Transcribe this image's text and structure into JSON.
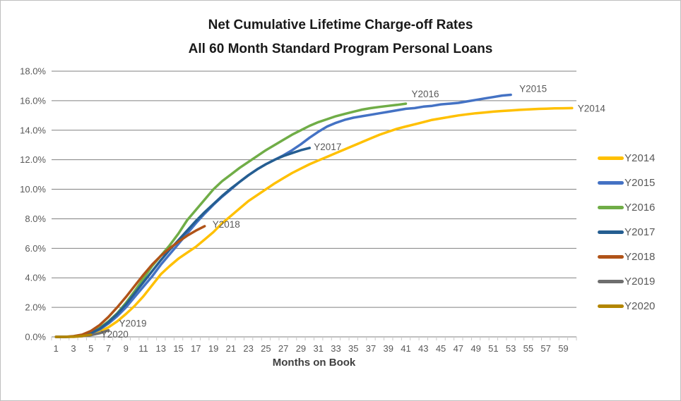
{
  "title": {
    "line1": "Net Cumulative Lifetime Charge-off Rates",
    "line2": "All 60 Month Standard Program Personal Loans"
  },
  "style": {
    "gridline_color": "#808080",
    "tick_color": "#c9c9c9",
    "axis_text_color": "#595959",
    "title_color": "#1a1a1a",
    "background": "#ffffff",
    "border_color": "#bfbfbf"
  },
  "chart_data": {
    "type": "line",
    "title": "Net Cumulative Lifetime Charge-off Rates — All 60 Month Standard Program Personal Loans",
    "xlabel": "Months on Book",
    "ylabel": "",
    "grid": true,
    "legend_position": "right",
    "x_axis": {
      "min": 1,
      "max": 60,
      "tick_labels": [
        "1",
        "3",
        "5",
        "7",
        "9",
        "11",
        "13",
        "15",
        "17",
        "19",
        "21",
        "23",
        "25",
        "27",
        "29",
        "31",
        "33",
        "35",
        "37",
        "39",
        "41",
        "43",
        "45",
        "47",
        "49",
        "51",
        "53",
        "55",
        "57",
        "59"
      ]
    },
    "y_axis": {
      "min": 0,
      "max": 18,
      "step": 2,
      "tick_labels": [
        "0.0%",
        "2.0%",
        "4.0%",
        "6.0%",
        "8.0%",
        "10.0%",
        "12.0%",
        "14.0%",
        "16.0%",
        "18.0%"
      ]
    },
    "series": [
      {
        "name": "Y2014",
        "color": "#FFC000",
        "label_dx": 8,
        "label_dy": 5,
        "values": [
          0,
          0,
          0,
          0.05,
          0.15,
          0.35,
          0.65,
          1.05,
          1.55,
          2.1,
          2.75,
          3.5,
          4.25,
          4.8,
          5.3,
          5.7,
          6.1,
          6.6,
          7.1,
          7.7,
          8.2,
          8.7,
          9.2,
          9.6,
          10.0,
          10.4,
          10.75,
          11.1,
          11.4,
          11.7,
          11.95,
          12.2,
          12.45,
          12.7,
          12.95,
          13.2,
          13.45,
          13.7,
          13.9,
          14.1,
          14.25,
          14.4,
          14.55,
          14.7,
          14.8,
          14.9,
          15.0,
          15.08,
          15.15,
          15.2,
          15.26,
          15.3,
          15.34,
          15.38,
          15.41,
          15.44,
          15.46,
          15.48,
          15.49,
          15.5
        ]
      },
      {
        "name": "Y2015",
        "color": "#4472C4",
        "label_dx": 12,
        "label_dy": -4,
        "values": [
          0,
          0,
          0.02,
          0.08,
          0.25,
          0.5,
          0.9,
          1.4,
          2.0,
          2.7,
          3.4,
          4.1,
          4.9,
          5.6,
          6.3,
          7.0,
          7.7,
          8.35,
          8.95,
          9.5,
          10.0,
          10.5,
          10.95,
          11.35,
          11.7,
          12.0,
          12.3,
          12.65,
          13.05,
          13.5,
          13.9,
          14.25,
          14.5,
          14.7,
          14.85,
          14.95,
          15.05,
          15.15,
          15.25,
          15.35,
          15.45,
          15.5,
          15.6,
          15.65,
          15.75,
          15.8,
          15.85,
          15.95,
          16.05,
          16.15,
          16.25,
          16.35,
          16.4
        ]
      },
      {
        "name": "Y2016",
        "color": "#70AD47",
        "label_dx": 8,
        "label_dy": -9,
        "values": [
          0,
          0,
          0.03,
          0.1,
          0.3,
          0.6,
          1.05,
          1.6,
          2.3,
          3.1,
          3.95,
          4.8,
          5.5,
          6.2,
          7.0,
          7.9,
          8.6,
          9.3,
          10.0,
          10.55,
          11.0,
          11.45,
          11.85,
          12.25,
          12.65,
          13.0,
          13.35,
          13.7,
          14.0,
          14.3,
          14.55,
          14.75,
          14.95,
          15.1,
          15.25,
          15.4,
          15.5,
          15.58,
          15.65,
          15.72,
          15.8
        ]
      },
      {
        "name": "Y2017",
        "color": "#255E91",
        "label_dx": 6,
        "label_dy": 3,
        "values": [
          0,
          0,
          0.02,
          0.08,
          0.25,
          0.55,
          1.0,
          1.55,
          2.2,
          2.95,
          3.7,
          4.45,
          5.2,
          5.9,
          6.55,
          7.2,
          7.85,
          8.45,
          9.0,
          9.55,
          10.05,
          10.5,
          10.95,
          11.35,
          11.7,
          12.0,
          12.25,
          12.45,
          12.65,
          12.8
        ]
      },
      {
        "name": "Y2018",
        "color": "#B05318",
        "label_dx": 11,
        "label_dy": 2,
        "values": [
          0,
          0,
          0.05,
          0.15,
          0.4,
          0.8,
          1.35,
          2.0,
          2.7,
          3.45,
          4.2,
          4.9,
          5.5,
          6.0,
          6.45,
          6.85,
          7.2,
          7.5
        ]
      },
      {
        "name": "Y2019",
        "color": "#6E6E6E",
        "label_dx": 15,
        "label_dy": -5,
        "values": [
          0,
          0,
          0.02,
          0.05,
          0.12,
          0.25,
          0.45
        ]
      },
      {
        "name": "Y2020",
        "color": "#B38600",
        "label_dx": 14,
        "label_dy": 4,
        "values": [
          0,
          0,
          0.02,
          0.06,
          0.15
        ]
      }
    ]
  }
}
